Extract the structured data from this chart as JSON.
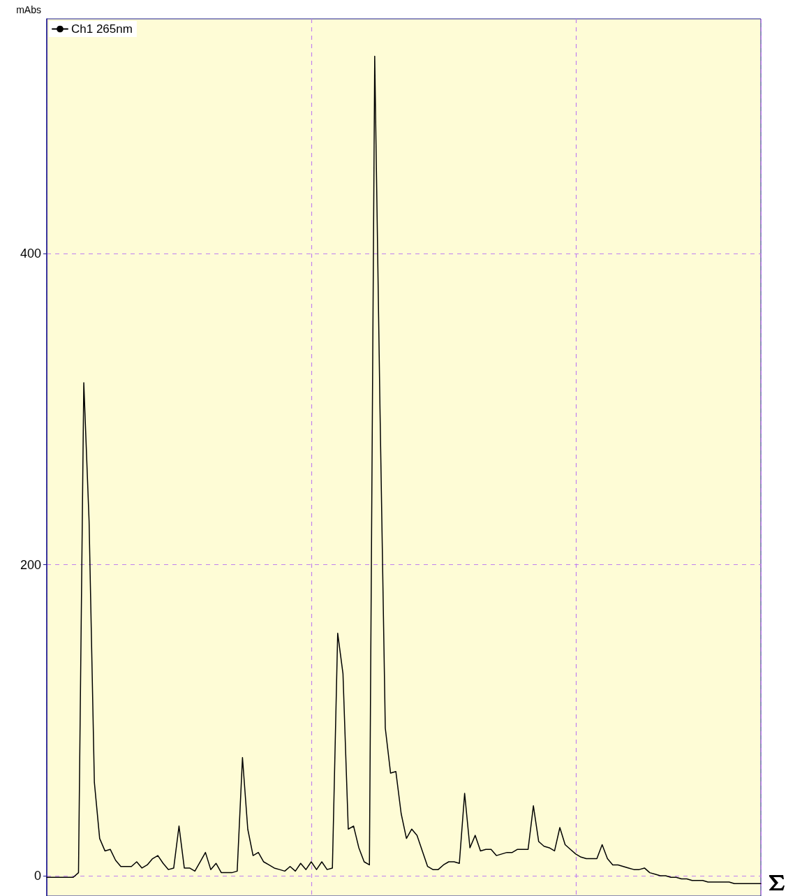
{
  "chart_data": {
    "type": "line",
    "ylabel": "mAbs",
    "categories": [
      null,
      null,
      null,
      null,
      null,
      null,
      null,
      null,
      null,
      null,
      null,
      null,
      null,
      null,
      null,
      null,
      null,
      null,
      null,
      null,
      null,
      null,
      null,
      null,
      null,
      null,
      null,
      null,
      null,
      null,
      null,
      null,
      null,
      null,
      null,
      null,
      null,
      null,
      null,
      null,
      null,
      null,
      null,
      null,
      null,
      null,
      null,
      null,
      null,
      null,
      null,
      null,
      null,
      null,
      null,
      null,
      null,
      null,
      null,
      null,
      null,
      null,
      null,
      null,
      null,
      null,
      null,
      null,
      null,
      null,
      null,
      null,
      null,
      null,
      null,
      null,
      null,
      null,
      null,
      null,
      null,
      null,
      null,
      null,
      null,
      null,
      null,
      null,
      null,
      null,
      null,
      null,
      null,
      null,
      null,
      null,
      null,
      null,
      null,
      null,
      null,
      null,
      null,
      null,
      null,
      null,
      null,
      null,
      null,
      null,
      null,
      null,
      null,
      null,
      null,
      null,
      null,
      null,
      null,
      null,
      null,
      null,
      null,
      null,
      null,
      null,
      null,
      null,
      null,
      null,
      null,
      null,
      null,
      null,
      null,
      null
    ],
    "series": [
      {
        "name": "Ch1 265nm",
        "color": "#000000",
        "values": [
          -1,
          -1,
          -1,
          -1,
          -1,
          -1,
          2,
          317,
          228,
          60,
          24,
          16,
          17,
          10,
          6,
          6,
          6,
          9,
          5,
          7,
          11,
          13,
          8,
          4,
          5,
          32,
          5,
          5,
          3,
          9,
          15,
          4,
          8,
          2,
          2,
          2,
          3,
          76,
          30,
          13,
          15,
          9,
          7,
          5,
          4,
          3,
          6,
          3,
          8,
          4,
          9,
          4,
          9,
          4,
          5,
          156,
          130,
          30,
          32,
          18,
          9,
          7,
          527,
          300,
          95,
          66,
          67,
          40,
          24,
          30,
          26,
          16,
          6,
          4,
          4,
          7,
          9,
          9,
          8,
          53,
          18,
          26,
          16,
          17,
          17,
          13,
          14,
          15,
          15,
          17,
          17,
          17,
          45,
          22,
          19,
          18,
          16,
          31,
          20,
          17,
          14,
          12,
          11,
          11,
          11,
          20,
          11,
          7,
          7,
          6,
          5,
          4,
          4,
          5,
          2,
          1,
          0,
          0,
          -1,
          -1,
          -2,
          -2,
          -3,
          -3,
          -3,
          -4,
          -4,
          -4,
          -4,
          -4,
          -5,
          -5,
          -5,
          -5,
          -5,
          -5
        ]
      }
    ],
    "ylim": [
      -13,
      551
    ],
    "yticks": [
      0,
      200,
      400
    ],
    "grid": true,
    "legend": "top left",
    "marker": "none",
    "line_style": "solid",
    "tick_labels": "y"
  }
}
